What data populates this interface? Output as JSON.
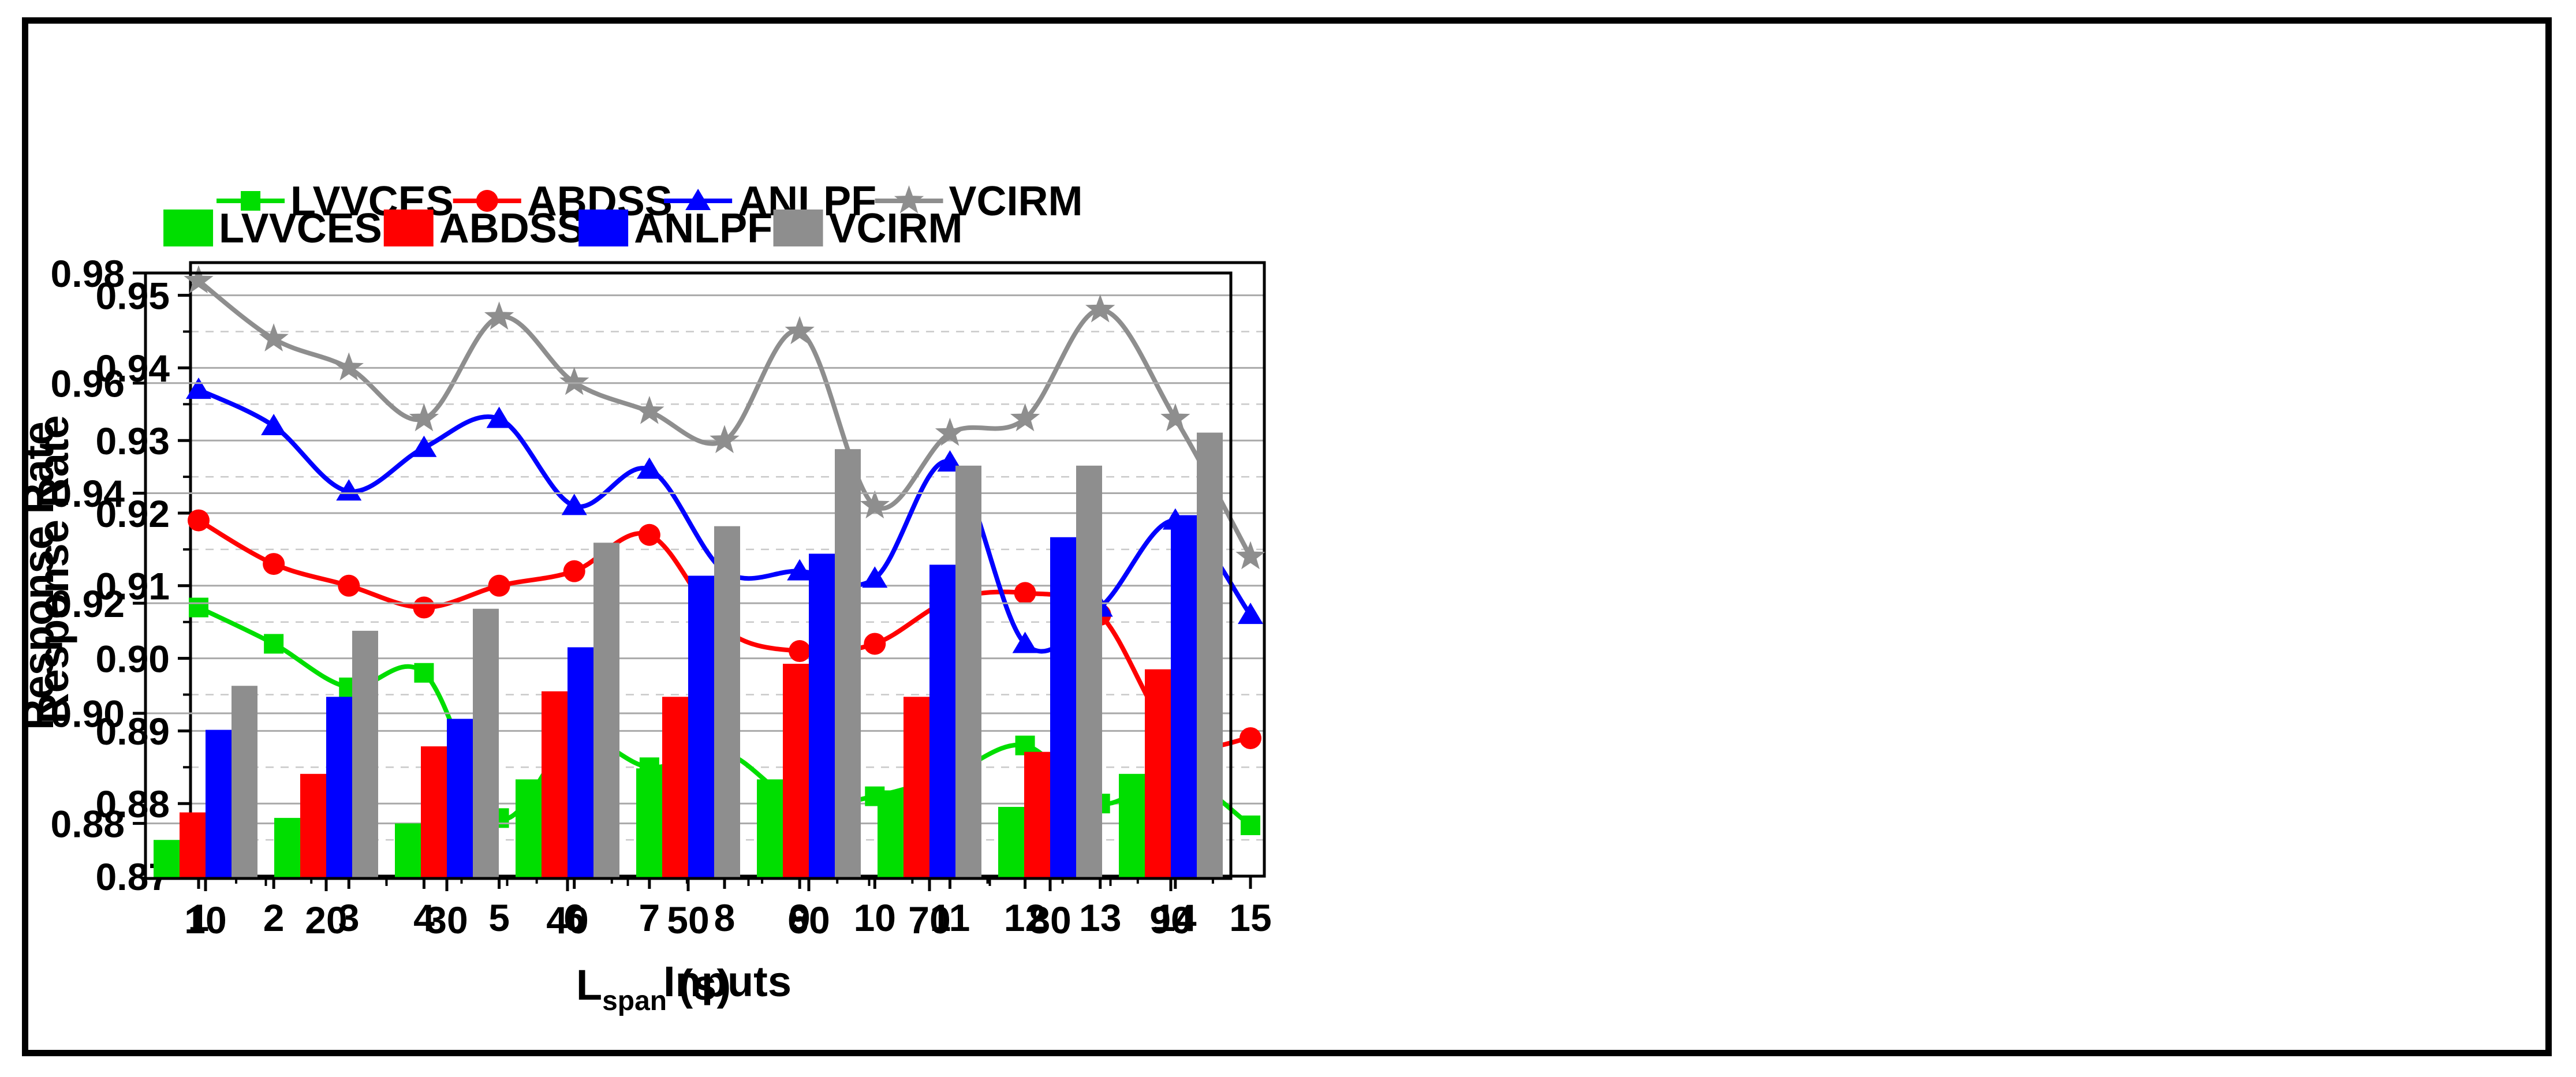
{
  "figure": {
    "background": "#ffffff",
    "border_color": "#000000"
  },
  "left_chart_title": "",
  "right_chart_title": "",
  "chart_data": [
    {
      "type": "line",
      "title": "",
      "xlabel": "Inputs",
      "ylabel": "Response Rate",
      "x": [
        1,
        2,
        3,
        4,
        5,
        6,
        7,
        8,
        9,
        10,
        11,
        12,
        13,
        14,
        15
      ],
      "x_tick_labels": [
        "1",
        "2",
        "3",
        "4",
        "5",
        "6",
        "7",
        "8",
        "9",
        "10",
        "11",
        "12",
        "13",
        "14",
        "15"
      ],
      "y_ticks": [
        0.87,
        0.88,
        0.89,
        0.9,
        0.91,
        0.92,
        0.93,
        0.94,
        0.95
      ],
      "y_tick_labels": [
        "0.87",
        "0.88",
        "0.89",
        "0.90",
        "0.91",
        "0.92",
        "0.93",
        "0.94",
        "0.95"
      ],
      "ylim": [
        0.87,
        0.9545
      ],
      "y_major_step": 0.01,
      "y_minor_step": 0.005,
      "grid": true,
      "legend_position": "top",
      "series": [
        {
          "name": "LVVCES",
          "color": "#00de00",
          "marker": "square",
          "values": [
            0.907,
            0.902,
            0.896,
            0.898,
            0.878,
            0.889,
            0.885,
            0.887,
            0.88,
            0.881,
            0.884,
            0.888,
            0.88,
            0.884,
            0.877
          ]
        },
        {
          "name": "ABDSS",
          "color": "#ff0000",
          "marker": "circle",
          "values": [
            0.919,
            0.913,
            0.91,
            0.907,
            0.91,
            0.912,
            0.917,
            0.904,
            0.901,
            0.902,
            0.908,
            0.909,
            0.906,
            0.889,
            0.889
          ]
        },
        {
          "name": "ANLPF",
          "color": "#0000ff",
          "marker": "triangle",
          "values": [
            0.937,
            0.932,
            0.923,
            0.929,
            0.933,
            0.921,
            0.926,
            0.912,
            0.912,
            0.911,
            0.927,
            0.902,
            0.907,
            0.919,
            0.906
          ]
        },
        {
          "name": "VCIRM",
          "color": "#8e8e8e",
          "marker": "star",
          "values": [
            0.952,
            0.944,
            0.94,
            0.933,
            0.947,
            0.938,
            0.934,
            0.93,
            0.945,
            0.921,
            0.931,
            0.933,
            0.948,
            0.933,
            0.914
          ]
        }
      ]
    },
    {
      "type": "bar",
      "title": "",
      "xlabel_parts": {
        "main": "L",
        "sub": "span",
        "unit": " (s)"
      },
      "ylabel": "Response Rate",
      "categories": [
        "10",
        "20",
        "30",
        "40",
        "50",
        "60",
        "70",
        "80",
        "90"
      ],
      "y_ticks": [
        0.88,
        0.9,
        0.92,
        0.94,
        0.96,
        0.98
      ],
      "y_tick_labels": [
        "0.88",
        "0.90",
        "0.92",
        "0.94",
        "0.96",
        "0.98"
      ],
      "ylim": [
        0.87,
        0.98
      ],
      "y_major_step": 0.02,
      "y_minor_step": 0.01,
      "grid": true,
      "legend_position": "top",
      "series": [
        {
          "name": "LVVCES",
          "color": "#00de00",
          "values": [
            0.877,
            0.881,
            0.88,
            0.888,
            0.89,
            0.888,
            0.886,
            0.883,
            0.889
          ]
        },
        {
          "name": "ABDSS",
          "color": "#ff0000",
          "values": [
            0.882,
            0.889,
            0.894,
            0.904,
            0.903,
            0.909,
            0.903,
            0.893,
            0.908
          ]
        },
        {
          "name": "ANLPF",
          "color": "#0000ff",
          "values": [
            0.897,
            0.903,
            0.899,
            0.912,
            0.925,
            0.929,
            0.927,
            0.932,
            0.936
          ]
        },
        {
          "name": "VCIRM",
          "color": "#8e8e8e",
          "values": [
            0.905,
            0.915,
            0.919,
            0.931,
            0.934,
            0.948,
            0.945,
            0.945,
            0.951
          ]
        }
      ]
    }
  ]
}
